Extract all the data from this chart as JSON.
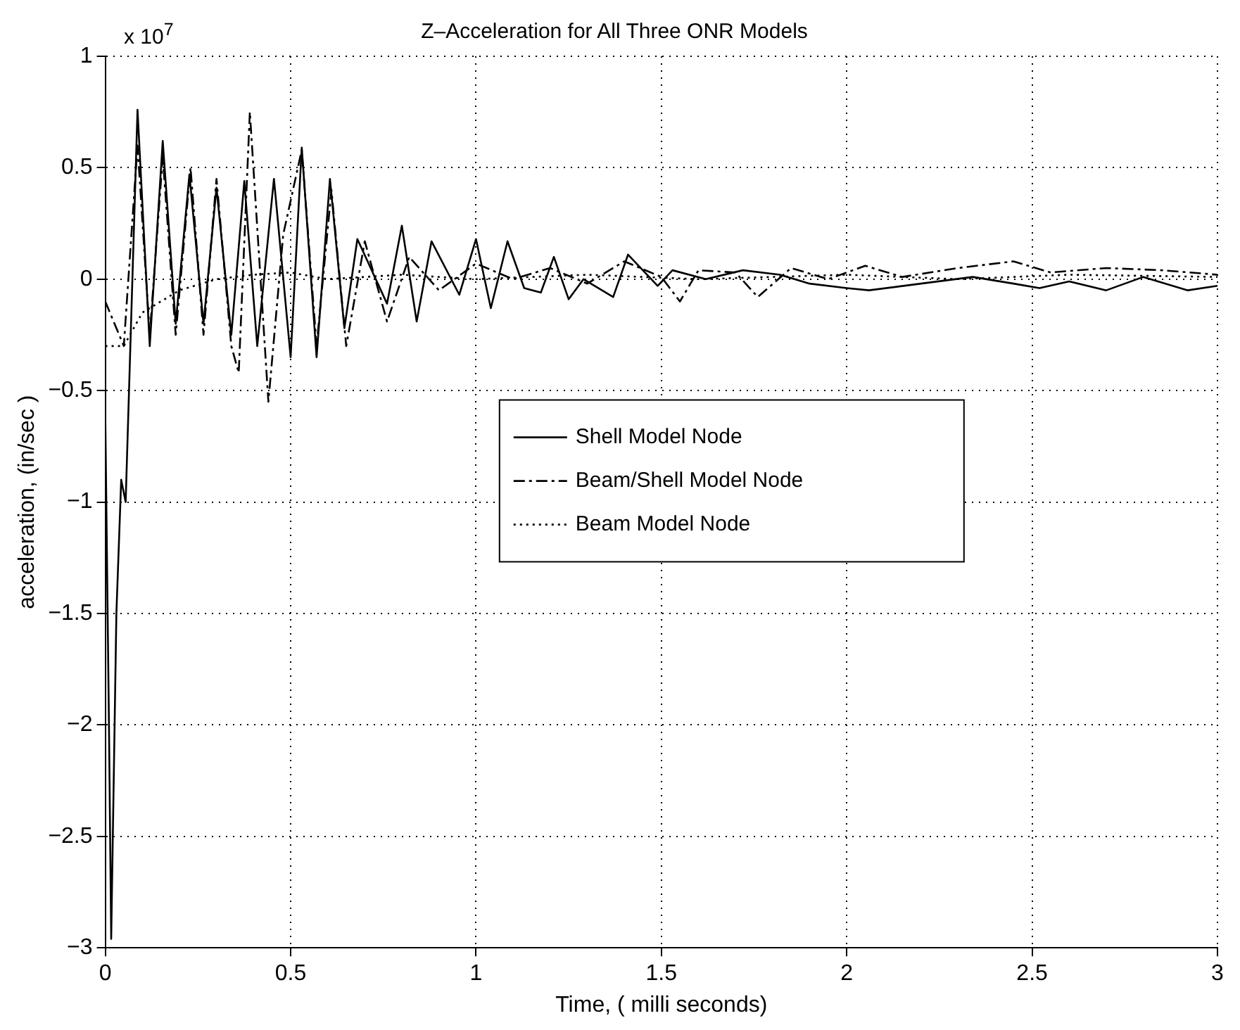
{
  "chart_data": {
    "type": "line",
    "title": "Z–Acceleration for All Three ONR Models",
    "xlabel": "Time, ( milli seconds)",
    "ylabel": "acceleration, (in/sec )",
    "annotations": [
      "x 10$^{7}$"
    ],
    "xlim": [
      0,
      3
    ],
    "xticks": [
      0,
      0.5,
      1,
      1.5,
      2,
      2.5,
      3
    ],
    "ylim": [
      -3,
      1
    ],
    "yticks": [
      -3,
      -2.5,
      -2,
      -1.5,
      -1,
      -0.5,
      0,
      0.5,
      1
    ],
    "grid": true,
    "legend": "center",
    "marker": "none",
    "series": [
      {
        "name": "Shell Model Node",
        "color": "#000000",
        "line_style": "solid",
        "x": [
          0,
          0.01,
          0.016,
          0.03,
          0.043,
          0.055,
          0.087,
          0.12,
          0.155,
          0.19,
          0.227,
          0.265,
          0.3,
          0.34,
          0.375,
          0.41,
          0.455,
          0.5,
          0.53,
          0.57,
          0.606,
          0.645,
          0.68,
          0.76,
          0.8,
          0.84,
          0.88,
          0.955,
          1.0,
          1.04,
          1.085,
          1.13,
          1.175,
          1.21,
          1.25,
          1.29,
          1.37,
          1.41,
          1.49,
          1.53,
          1.62,
          1.72,
          1.82,
          1.9,
          2.0,
          2.06,
          2.2,
          2.34,
          2.45,
          2.52,
          2.6,
          2.7,
          2.8,
          2.92,
          3.0
        ],
        "values": [
          -0.6,
          -2.0,
          -2.96,
          -1.5,
          -0.9,
          -1.0,
          0.76,
          -0.3,
          0.62,
          -0.2,
          0.47,
          -0.2,
          0.41,
          -0.25,
          0.44,
          -0.3,
          0.45,
          -0.35,
          0.59,
          -0.35,
          0.45,
          -0.22,
          0.18,
          -0.11,
          0.24,
          -0.19,
          0.17,
          -0.07,
          0.18,
          -0.13,
          0.17,
          -0.04,
          -0.06,
          0.1,
          -0.09,
          0.0,
          -0.08,
          0.11,
          -0.03,
          0.04,
          0.0,
          0.04,
          0.02,
          -0.02,
          -0.04,
          -0.05,
          -0.02,
          0.01,
          -0.02,
          -0.04,
          -0.01,
          -0.05,
          0.01,
          -0.05,
          -0.03
        ]
      },
      {
        "name": "Beam/Shell Model Node",
        "color": "#000000",
        "line_style": "dashed",
        "x": [
          0,
          0.05,
          0.087,
          0.12,
          0.155,
          0.19,
          0.23,
          0.265,
          0.3,
          0.34,
          0.36,
          0.39,
          0.44,
          0.48,
          0.53,
          0.57,
          0.61,
          0.65,
          0.7,
          0.76,
          0.82,
          0.9,
          1.0,
          1.1,
          1.2,
          1.3,
          1.4,
          1.5,
          1.55,
          1.6,
          1.7,
          1.76,
          1.85,
          1.95,
          2.05,
          2.15,
          2.3,
          2.45,
          2.55,
          2.7,
          2.85,
          3.0
        ],
        "values": [
          -0.1,
          -0.3,
          0.6,
          -0.25,
          0.55,
          -0.25,
          0.5,
          -0.25,
          0.45,
          -0.3,
          -0.42,
          0.75,
          -0.55,
          0.2,
          0.58,
          -0.3,
          0.4,
          -0.3,
          0.17,
          -0.19,
          0.1,
          -0.05,
          0.07,
          0.0,
          0.05,
          -0.02,
          0.08,
          0.01,
          -0.1,
          0.04,
          0.03,
          -0.08,
          0.05,
          0.0,
          0.06,
          0.01,
          0.05,
          0.08,
          0.03,
          0.05,
          0.04,
          0.02
        ]
      },
      {
        "name": "Beam Model Node",
        "color": "#000000",
        "line_style": "dotted",
        "x": [
          0,
          0.05,
          0.1,
          0.2,
          0.3,
          0.4,
          0.5,
          0.6,
          0.8,
          1.0,
          1.3,
          1.6,
          2.0,
          2.3,
          2.6,
          3.0
        ],
        "values": [
          -0.3,
          -0.3,
          -0.15,
          -0.05,
          0.0,
          0.02,
          0.03,
          0.0,
          0.02,
          0.0,
          0.02,
          0.0,
          0.02,
          0.0,
          0.02,
          0.01
        ]
      }
    ]
  }
}
